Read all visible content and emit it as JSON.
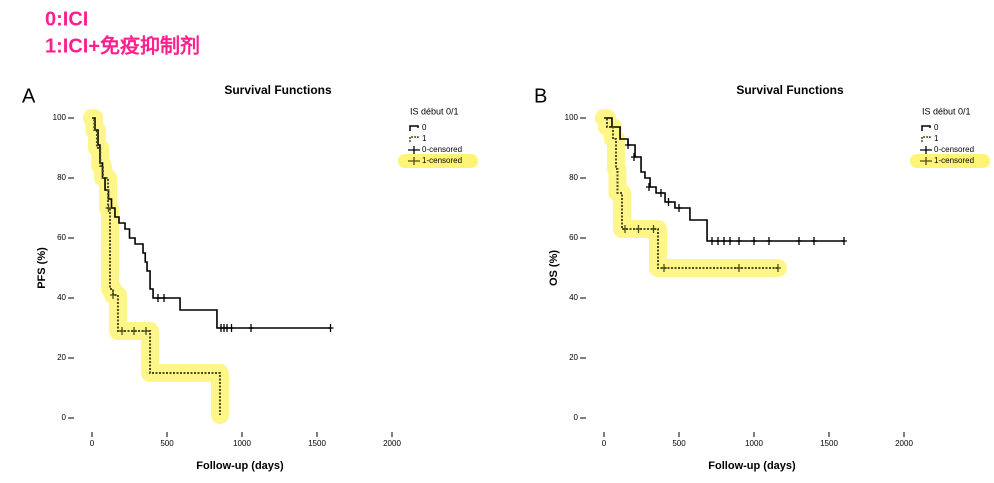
{
  "header": {
    "lines": [
      "0:ICI",
      "1:ICI+免疫抑制剂"
    ]
  },
  "chart_data": [
    {
      "type": "step",
      "panel": "A",
      "title": "Survival Functions",
      "x_label": "Follow-up (days)",
      "y_label": "PFS (%)",
      "legend_title": "IS début 0/1",
      "highlight_color": "#fff475",
      "xlim": [
        -110,
        2090
      ],
      "ylim": [
        -4,
        105
      ],
      "xticks": [
        0,
        500,
        1000,
        1500,
        2000
      ],
      "yticks": [
        0,
        20,
        40,
        60,
        80,
        100
      ],
      "series": [
        {
          "name": "0",
          "kind": "line",
          "color": "#000000",
          "dash": false,
          "highlight": false,
          "x": [
            0,
            20,
            40,
            53,
            70,
            87,
            110,
            130,
            153,
            180,
            220,
            250,
            287,
            340,
            355,
            367,
            387,
            407,
            587,
            833,
            1587
          ],
          "values": [
            100,
            96,
            91,
            85,
            80,
            76,
            73,
            70,
            67,
            65,
            63,
            60,
            58,
            55,
            52,
            49,
            43,
            40,
            36,
            30,
            30
          ]
        },
        {
          "name": "1",
          "kind": "line",
          "color": "#4d4d1a",
          "dash": true,
          "highlight": true,
          "x": [
            0,
            15,
            33,
            55,
            73,
            107,
            120,
            140,
            173,
            387,
            853
          ],
          "values": [
            100,
            96,
            90,
            84,
            80,
            70,
            43,
            41,
            29,
            15,
            1
          ]
        },
        {
          "name": "0-censored",
          "kind": "censor",
          "color": "#000000",
          "highlight": false,
          "x": [
            440,
            480,
            860,
            880,
            900,
            930,
            1060,
            1590
          ],
          "values": [
            40,
            40,
            30,
            30,
            30,
            30,
            30,
            30
          ]
        },
        {
          "name": "1-censored",
          "kind": "censor",
          "color": "#4d4d1a",
          "highlight": true,
          "x": [
            110,
            140,
            200,
            280,
            360
          ],
          "values": [
            70,
            41,
            29,
            29,
            29
          ]
        }
      ]
    },
    {
      "type": "step",
      "panel": "B",
      "title": "Survival Functions",
      "x_label": "Follow-up (days)",
      "y_label": "OS (%)",
      "legend_title": "IS début 0/1",
      "highlight_color": "#fff475",
      "xlim": [
        -110,
        2090
      ],
      "ylim": [
        -4,
        105
      ],
      "xticks": [
        0,
        500,
        1000,
        1500,
        2000
      ],
      "yticks": [
        0,
        20,
        40,
        60,
        80,
        100
      ],
      "series": [
        {
          "name": "0",
          "kind": "line",
          "color": "#000000",
          "dash": false,
          "highlight": false,
          "x": [
            0,
            53,
            107,
            160,
            207,
            247,
            273,
            307,
            347,
            407,
            473,
            573,
            687,
            1600
          ],
          "values": [
            100,
            97,
            93,
            91,
            87,
            82,
            80,
            77,
            75,
            72,
            70,
            66,
            59,
            59
          ]
        },
        {
          "name": "1",
          "kind": "line",
          "color": "#4d4d1a",
          "dash": true,
          "highlight": true,
          "x": [
            0,
            20,
            60,
            80,
            90,
            120,
            360,
            1160
          ],
          "values": [
            100,
            97,
            93,
            83,
            75,
            63,
            50,
            50
          ]
        },
        {
          "name": "0-censored",
          "kind": "censor",
          "color": "#000000",
          "highlight": false,
          "x": [
            160,
            200,
            300,
            380,
            430,
            500,
            720,
            760,
            800,
            840,
            900,
            1000,
            1100,
            1300,
            1400,
            1600
          ],
          "values": [
            91,
            87,
            77,
            75,
            72,
            70,
            59,
            59,
            59,
            59,
            59,
            59,
            59,
            59,
            59,
            59
          ]
        },
        {
          "name": "1-censored",
          "kind": "censor",
          "color": "#4d4d1a",
          "highlight": true,
          "x": [
            140,
            230,
            330,
            400,
            900,
            1160
          ],
          "values": [
            63,
            63,
            63,
            50,
            50,
            50
          ]
        }
      ]
    }
  ]
}
